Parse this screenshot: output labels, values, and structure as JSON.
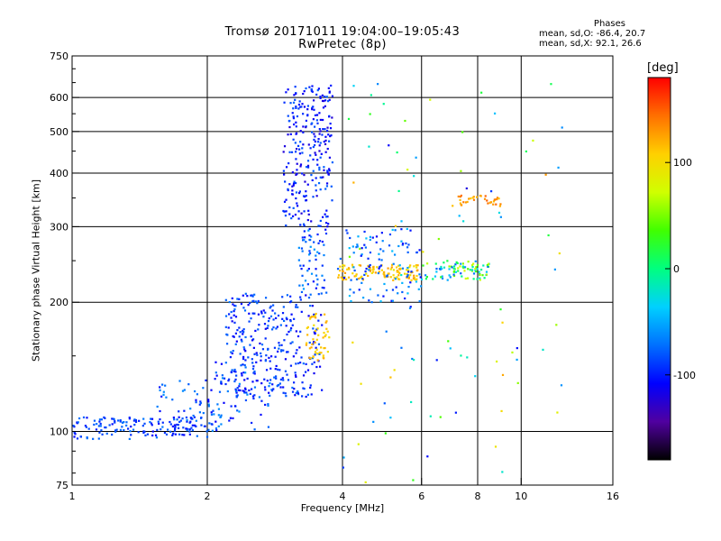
{
  "chart_data": {
    "type": "scatter",
    "title": "Tromsø 20171011 19:04:00–19:05:43",
    "subtitle": "RwPretec (8p)",
    "stats": {
      "heading": "Phases",
      "line1": "mean, sd,O: -86.4, 20.7",
      "line2": "mean, sd,X:  92.1, 26.6"
    },
    "xlabel": "Frequency [MHz]",
    "ylabel": "Stationary phase Virtual Height [km]",
    "x_scale": "log",
    "y_scale": "log",
    "xlim": [
      1,
      16
    ],
    "ylim": [
      75,
      750
    ],
    "x_ticks": [
      1,
      2,
      4,
      6,
      8,
      10,
      16
    ],
    "x_tick_labels": [
      "1",
      "2",
      "4",
      "6",
      "8",
      "10",
      "16"
    ],
    "x_grid": [
      2,
      4,
      6,
      8,
      10
    ],
    "y_ticks": [
      75,
      100,
      200,
      300,
      400,
      500,
      600,
      750
    ],
    "y_tick_labels": [
      "75",
      "100",
      "200",
      "300",
      "400",
      "500",
      "600",
      "750"
    ],
    "y_grid": [
      100,
      200,
      300,
      400,
      500,
      600
    ],
    "grid": true,
    "colorbar": {
      "unit": "[deg]",
      "range": [
        -180,
        180
      ],
      "ticks": [
        100,
        0,
        -100
      ],
      "tick_labels": [
        "100",
        "0",
        "-100"
      ],
      "colors": [
        "#000000",
        "#5000a0",
        "#0000ff",
        "#0070ff",
        "#00d0ff",
        "#00ff80",
        "#40ff00",
        "#d0ff00",
        "#ffd000",
        "#ff7000",
        "#ff0000"
      ]
    },
    "clusters": [
      {
        "name": "",
        "x": [
          1.0,
          2.05
        ],
        "y": [
          96,
          108
        ],
        "n": 150,
        "phase": [
          -110,
          -70
        ]
      },
      {
        "name": "",
        "x": [
          1.5,
          2.2
        ],
        "y": [
          100,
          135
        ],
        "n": 60,
        "phase": [
          -110,
          -60
        ]
      },
      {
        "name": "",
        "x": [
          2.0,
          2.8
        ],
        "y": [
          100,
          150
        ],
        "n": 80,
        "phase": [
          -110,
          -60
        ]
      },
      {
        "name": "",
        "x": [
          2.2,
          3.6
        ],
        "y": [
          120,
          210
        ],
        "n": 300,
        "phase": [
          -115,
          -70
        ]
      },
      {
        "name": "",
        "x": [
          2.95,
          3.8
        ],
        "y": [
          300,
          640
        ],
        "n": 260,
        "phase": [
          -125,
          -75
        ]
      },
      {
        "name": "",
        "x": [
          3.2,
          3.7
        ],
        "y": [
          210,
          300
        ],
        "n": 60,
        "phase": [
          -110,
          -55
        ]
      },
      {
        "name": "",
        "x": [
          3.3,
          3.75
        ],
        "y": [
          145,
          190
        ],
        "n": 50,
        "phase": [
          95,
          125
        ]
      },
      {
        "name": "",
        "x": [
          3.9,
          5.9
        ],
        "y": [
          225,
          245
        ],
        "n": 110,
        "phase": [
          90,
          130
        ]
      },
      {
        "name": "",
        "x": [
          3.9,
          6.0
        ],
        "y": [
          200,
          300
        ],
        "n": 110,
        "phase": [
          -110,
          -40
        ]
      },
      {
        "name": "",
        "x": [
          6.0,
          8.5
        ],
        "y": [
          225,
          250
        ],
        "n": 90,
        "phase": [
          -80,
          80
        ]
      },
      {
        "name": "",
        "x": [
          7.0,
          9.0
        ],
        "y": [
          335,
          355
        ],
        "n": 35,
        "phase": [
          110,
          150
        ]
      },
      {
        "name": "",
        "x": [
          4.0,
          12.5
        ],
        "y": [
          76,
          680
        ],
        "n": 90,
        "phase": [
          -120,
          130
        ]
      }
    ]
  }
}
